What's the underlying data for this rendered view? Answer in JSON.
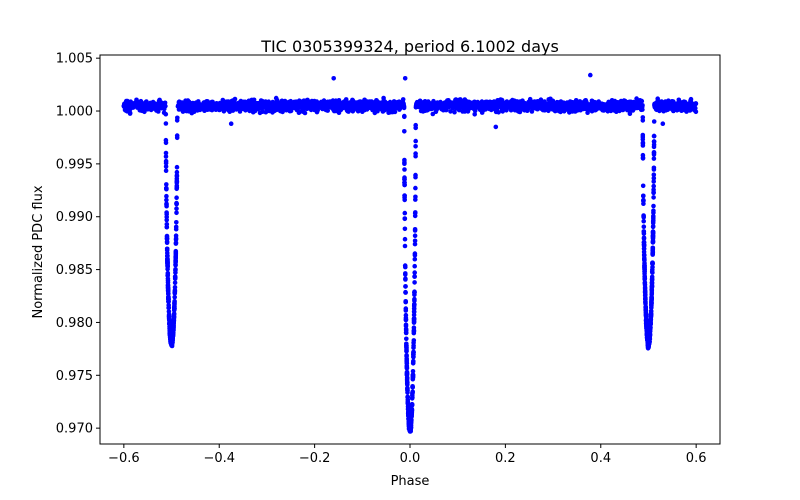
{
  "chart_data": {
    "type": "scatter",
    "title": "TIC 0305399324, period 6.1002 days",
    "xlabel": "Phase",
    "ylabel": "Normalized PDC flux",
    "xlim": [
      -0.65,
      0.65
    ],
    "ylim": [
      0.9685,
      1.0053
    ],
    "xticks": [
      -0.6,
      -0.4,
      -0.2,
      0.0,
      0.2,
      0.4,
      0.6
    ],
    "xtick_labels": [
      "−0.6",
      "−0.4",
      "−0.2",
      "0.0",
      "0.2",
      "0.4",
      "0.6"
    ],
    "yticks": [
      0.97,
      0.975,
      0.98,
      0.985,
      0.99,
      0.995,
      1.0,
      1.005
    ],
    "ytick_labels": [
      "0.970",
      "0.975",
      "0.980",
      "0.985",
      "0.990",
      "0.995",
      "1.000",
      "1.005"
    ],
    "grid": false,
    "marker_color": "#0000ff",
    "phase_range": [
      -0.6,
      0.6
    ],
    "baseline_flux": 1.0005,
    "baseline_scatter": 0.0012,
    "eclipses": [
      {
        "name": "primary",
        "phase": 0.0,
        "min_flux": 0.9698
      },
      {
        "name": "secondary",
        "phase": -0.5,
        "min_flux": 0.978
      },
      {
        "name": "secondary",
        "phase": 0.5,
        "min_flux": 0.978
      }
    ],
    "outliers": [
      {
        "x": -0.16,
        "y": 1.0031
      },
      {
        "x": -0.01,
        "y": 1.0031
      },
      {
        "x": 0.378,
        "y": 1.0034
      },
      {
        "x": -0.375,
        "y": 0.9988
      },
      {
        "x": 0.18,
        "y": 0.9985
      },
      {
        "x": 0.53,
        "y": 0.9988
      }
    ]
  }
}
